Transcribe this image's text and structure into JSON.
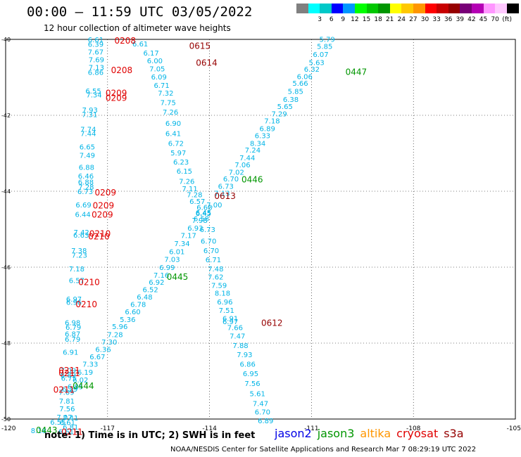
{
  "header": {
    "title": "00:00 – 11:59 UTC 03/05/2022",
    "subtitle": "12 hour collection of altimeter wave heights"
  },
  "legend": {
    "unit": "(ft)",
    "colors": [
      "#808080",
      "#00ffff",
      "#00c8c8",
      "#0000ff",
      "#0096ff",
      "#00ff00",
      "#00c800",
      "#009600",
      "#ffff00",
      "#ffc800",
      "#ff9600",
      "#ff0000",
      "#c80000",
      "#960000",
      "#780078",
      "#b400b4",
      "#ff96ff",
      "#ffc8ff",
      "#000000"
    ],
    "labels": [
      "3",
      "6",
      "9",
      "12",
      "15",
      "18",
      "21",
      "24",
      "27",
      "30",
      "33",
      "36",
      "39",
      "42",
      "45",
      "70"
    ]
  },
  "map": {
    "lon_labels": [
      "-120",
      "-117",
      "-114",
      "-111",
      "-108",
      "-105"
    ],
    "lat_labels": [
      "-40",
      "-42",
      "-44",
      "-46",
      "-48",
      "-50"
    ],
    "track_color": "#00b4e6",
    "readings": [
      {
        "t": "6.61",
        "lon": -117.58,
        "lat": -40.0
      },
      {
        "t": "6.39",
        "lon": -117.58,
        "lat": -40.12
      },
      {
        "t": "7.67",
        "lon": -117.58,
        "lat": -40.32
      },
      {
        "t": "7.69",
        "lon": -117.56,
        "lat": -40.53
      },
      {
        "t": "7.13",
        "lon": -117.56,
        "lat": -40.73
      },
      {
        "t": "6.86",
        "lon": -117.58,
        "lat": -40.86
      },
      {
        "t": "6.55",
        "lon": -117.65,
        "lat": -41.35
      },
      {
        "t": "7.34",
        "lon": -117.63,
        "lat": -41.45
      },
      {
        "t": "7.93",
        "lon": -117.75,
        "lat": -41.85
      },
      {
        "t": "7.31",
        "lon": -117.76,
        "lat": -41.97
      },
      {
        "t": "7.74",
        "lon": -117.8,
        "lat": -42.36
      },
      {
        "t": "7.44",
        "lon": -117.8,
        "lat": -42.47
      },
      {
        "t": "6.65",
        "lon": -117.83,
        "lat": -42.82
      },
      {
        "t": "7.49",
        "lon": -117.83,
        "lat": -43.05
      },
      {
        "t": "6.88",
        "lon": -117.85,
        "lat": -43.36
      },
      {
        "t": "6.46",
        "lon": -117.87,
        "lat": -43.59
      },
      {
        "t": "6.88",
        "lon": -117.87,
        "lat": -43.75
      },
      {
        "t": "7.28",
        "lon": -117.86,
        "lat": -43.88
      },
      {
        "t": "6.73",
        "lon": -117.89,
        "lat": -44.0
      },
      {
        "t": "6.69",
        "lon": -117.94,
        "lat": -44.35
      },
      {
        "t": "6.44",
        "lon": -117.96,
        "lat": -44.6
      },
      {
        "t": "7.42",
        "lon": -118.0,
        "lat": -45.07
      },
      {
        "t": "6.63",
        "lon": -118.01,
        "lat": -45.15
      },
      {
        "t": "7.38",
        "lon": -118.07,
        "lat": -45.56
      },
      {
        "t": "7.23",
        "lon": -118.06,
        "lat": -45.68
      },
      {
        "t": "7.18",
        "lon": -118.14,
        "lat": -46.04
      },
      {
        "t": "6.57",
        "lon": -118.14,
        "lat": -46.34
      },
      {
        "t": "6.97",
        "lon": -118.22,
        "lat": -46.83
      },
      {
        "t": "6.96",
        "lon": -118.22,
        "lat": -46.92
      },
      {
        "t": "6.98",
        "lon": -118.26,
        "lat": -47.45
      },
      {
        "t": "6.79",
        "lon": -118.24,
        "lat": -47.57
      },
      {
        "t": "6.87",
        "lon": -118.26,
        "lat": -47.75
      },
      {
        "t": "6.79",
        "lon": -118.26,
        "lat": -47.89
      },
      {
        "t": "6.91",
        "lon": -118.32,
        "lat": -48.23
      },
      {
        "t": "7.09",
        "lon": -118.39,
        "lat": -48.71
      },
      {
        "t": "6.89",
        "lon": -118.39,
        "lat": -48.83
      },
      {
        "t": "6.75",
        "lon": -118.37,
        "lat": -48.92
      },
      {
        "t": "6.29",
        "lon": -118.34,
        "lat": -49.2
      },
      {
        "t": "7.09",
        "lon": -118.44,
        "lat": -49.29
      },
      {
        "t": "7.81",
        "lon": -118.43,
        "lat": -49.52
      },
      {
        "t": "7.56",
        "lon": -118.42,
        "lat": -49.72
      },
      {
        "t": "7.07",
        "lon": -118.5,
        "lat": -49.94
      },
      {
        "t": "6.55",
        "lon": -118.69,
        "lat": -50.07
      },
      {
        "t": "8.18",
        "lon": -119.26,
        "lat": -50.3
      },
      {
        "t": "6.61",
        "lon": -118.41,
        "lat": -50.08
      },
      {
        "t": "7.41",
        "lon": -118.32,
        "lat": -49.96
      },
      {
        "t": "6.81",
        "lon": -118.32,
        "lat": -50.2
      },
      {
        "t": "6.61",
        "lon": -118.45,
        "lat": -50.32
      },
      {
        "t": "6.61",
        "lon": -116.27,
        "lat": -40.11
      },
      {
        "t": "6.17",
        "lon": -115.95,
        "lat": -40.35
      },
      {
        "t": "6.00",
        "lon": -115.84,
        "lat": -40.56
      },
      {
        "t": "7.05",
        "lon": -115.77,
        "lat": -40.77
      },
      {
        "t": "6.09",
        "lon": -115.72,
        "lat": -40.98
      },
      {
        "t": "6.71",
        "lon": -115.64,
        "lat": -41.2
      },
      {
        "t": "7.32",
        "lon": -115.52,
        "lat": -41.41
      },
      {
        "t": "7.75",
        "lon": -115.45,
        "lat": -41.66
      },
      {
        "t": "7.26",
        "lon": -115.38,
        "lat": -41.91
      },
      {
        "t": "6.90",
        "lon": -115.3,
        "lat": -42.2
      },
      {
        "t": "6.41",
        "lon": -115.3,
        "lat": -42.47
      },
      {
        "t": "6.72",
        "lon": -115.22,
        "lat": -42.73
      },
      {
        "t": "5.97",
        "lon": -115.15,
        "lat": -42.98
      },
      {
        "t": "6.23",
        "lon": -115.07,
        "lat": -43.22
      },
      {
        "t": "6.15",
        "lon": -114.97,
        "lat": -43.46
      },
      {
        "t": "7.26",
        "lon": -114.9,
        "lat": -43.73
      },
      {
        "t": "7.11",
        "lon": -114.81,
        "lat": -43.93
      },
      {
        "t": "7.28",
        "lon": -114.67,
        "lat": -44.08
      },
      {
        "t": "6.57",
        "lon": -114.59,
        "lat": -44.26
      },
      {
        "t": "6.68",
        "lon": -114.38,
        "lat": -44.42
      },
      {
        "t": "6.45",
        "lon": -114.41,
        "lat": -44.57
      },
      {
        "t": "6.58",
        "lon": -114.47,
        "lat": -44.71
      },
      {
        "t": "6.73",
        "lon": -114.29,
        "lat": -45.0
      },
      {
        "t": "6.70",
        "lon": -114.26,
        "lat": -45.31
      },
      {
        "t": "6.70",
        "lon": -114.18,
        "lat": -45.56
      },
      {
        "t": "6.71",
        "lon": -114.12,
        "lat": -45.8
      },
      {
        "t": "7.48",
        "lon": -114.05,
        "lat": -46.04
      },
      {
        "t": "7.62",
        "lon": -114.05,
        "lat": -46.25
      },
      {
        "t": "7.59",
        "lon": -113.95,
        "lat": -46.47
      },
      {
        "t": "8.18",
        "lon": -113.85,
        "lat": -46.68
      },
      {
        "t": "6.96",
        "lon": -113.78,
        "lat": -46.91
      },
      {
        "t": "7.51",
        "lon": -113.73,
        "lat": -47.13
      },
      {
        "t": "6.91",
        "lon": -113.62,
        "lat": -47.34
      },
      {
        "t": "6.97",
        "lon": -113.62,
        "lat": -47.43
      },
      {
        "t": "7.66",
        "lon": -113.48,
        "lat": -47.58
      },
      {
        "t": "7.47",
        "lon": -113.41,
        "lat": -47.81
      },
      {
        "t": "7.88",
        "lon": -113.32,
        "lat": -48.06
      },
      {
        "t": "7.93",
        "lon": -113.2,
        "lat": -48.3
      },
      {
        "t": "6.86",
        "lon": -113.11,
        "lat": -48.55
      },
      {
        "t": "6.95",
        "lon": -113.02,
        "lat": -48.8
      },
      {
        "t": "7.56",
        "lon": -112.97,
        "lat": -49.06
      },
      {
        "t": "5.61",
        "lon": -112.82,
        "lat": -49.32
      },
      {
        "t": "7.47",
        "lon": -112.73,
        "lat": -49.58
      },
      {
        "t": "6.70",
        "lon": -112.67,
        "lat": -49.81
      },
      {
        "t": "6.89",
        "lon": -112.58,
        "lat": -50.04
      },
      {
        "t": "5.79",
        "lon": -110.77,
        "lat": -39.99
      },
      {
        "t": "5.85",
        "lon": -110.84,
        "lat": -40.18
      },
      {
        "t": "6.07",
        "lon": -110.96,
        "lat": -40.39
      },
      {
        "t": "5.63",
        "lon": -111.08,
        "lat": -40.6
      },
      {
        "t": "6.32",
        "lon": -111.22,
        "lat": -40.78
      },
      {
        "t": "6.06",
        "lon": -111.43,
        "lat": -40.97
      },
      {
        "t": "5.66",
        "lon": -111.56,
        "lat": -41.15
      },
      {
        "t": "5.85",
        "lon": -111.7,
        "lat": -41.36
      },
      {
        "t": "6.38",
        "lon": -111.84,
        "lat": -41.57
      },
      {
        "t": "5.65",
        "lon": -112.01,
        "lat": -41.76
      },
      {
        "t": "7.29",
        "lon": -112.18,
        "lat": -41.95
      },
      {
        "t": "7.18",
        "lon": -112.39,
        "lat": -42.14
      },
      {
        "t": "6.89",
        "lon": -112.53,
        "lat": -42.34
      },
      {
        "t": "6.33",
        "lon": -112.67,
        "lat": -42.53
      },
      {
        "t": "8.34",
        "lon": -112.81,
        "lat": -42.73
      },
      {
        "t": "7.24",
        "lon": -112.96,
        "lat": -42.91
      },
      {
        "t": "7.44",
        "lon": -113.12,
        "lat": -43.11
      },
      {
        "t": "7.06",
        "lon": -113.26,
        "lat": -43.3
      },
      {
        "t": "7.02",
        "lon": -113.44,
        "lat": -43.49
      },
      {
        "t": "6.70",
        "lon": -113.6,
        "lat": -43.67
      },
      {
        "t": "6.73",
        "lon": -113.75,
        "lat": -43.86
      },
      {
        "t": "7.13",
        "lon": -113.86,
        "lat": -44.05
      },
      {
        "t": "7.00",
        "lon": -114.09,
        "lat": -44.35
      },
      {
        "t": "6.45",
        "lon": -114.41,
        "lat": -44.56
      },
      {
        "t": "7.98",
        "lon": -114.52,
        "lat": -44.76
      },
      {
        "t": "6.93",
        "lon": -114.65,
        "lat": -44.96
      },
      {
        "t": "7.17",
        "lon": -114.85,
        "lat": -45.16
      },
      {
        "t": "7.34",
        "lon": -115.04,
        "lat": -45.37
      },
      {
        "t": "6.01",
        "lon": -115.19,
        "lat": -45.58
      },
      {
        "t": "7.03",
        "lon": -115.33,
        "lat": -45.79
      },
      {
        "t": "6.99",
        "lon": -115.48,
        "lat": -46.0
      },
      {
        "t": "7.16",
        "lon": -115.65,
        "lat": -46.2
      },
      {
        "t": "6.92",
        "lon": -115.79,
        "lat": -46.39
      },
      {
        "t": "6.52",
        "lon": -115.97,
        "lat": -46.58
      },
      {
        "t": "6.48",
        "lon": -116.14,
        "lat": -46.78
      },
      {
        "t": "6.78",
        "lon": -116.33,
        "lat": -46.97
      },
      {
        "t": "6.60",
        "lon": -116.49,
        "lat": -47.17
      },
      {
        "t": "5.36",
        "lon": -116.64,
        "lat": -47.37
      },
      {
        "t": "5.96",
        "lon": -116.87,
        "lat": -47.56
      },
      {
        "t": "7.28",
        "lon": -117.01,
        "lat": -47.77
      },
      {
        "t": "7.30",
        "lon": -117.18,
        "lat": -47.96
      },
      {
        "t": "6.36",
        "lon": -117.36,
        "lat": -48.16
      },
      {
        "t": "6.67",
        "lon": -117.53,
        "lat": -48.35
      },
      {
        "t": "7.33",
        "lon": -117.74,
        "lat": -48.55
      },
      {
        "t": "6.19",
        "lon": -117.89,
        "lat": -48.76
      },
      {
        "t": "6.02",
        "lon": -118.03,
        "lat": -48.96
      },
      {
        "t": "6.85",
        "lon": -118.18,
        "lat": -49.14
      }
    ],
    "pass_labels": [
      {
        "t": "0208",
        "lon": -116.8,
        "lat": -40.02,
        "c": "#e00000"
      },
      {
        "t": "0615",
        "lon": -114.6,
        "lat": -40.16,
        "c": "#960000"
      },
      {
        "t": "0614",
        "lon": -114.4,
        "lat": -40.6,
        "c": "#960000"
      },
      {
        "t": "0208",
        "lon": -116.9,
        "lat": -40.8,
        "c": "#e00000"
      },
      {
        "t": "0447",
        "lon": -110.0,
        "lat": -40.84,
        "c": "#009600"
      },
      {
        "t": "0209",
        "lon": -117.06,
        "lat": -41.4,
        "c": "#e00000"
      },
      {
        "t": "0209",
        "lon": -117.06,
        "lat": -41.53,
        "c": "#e00000"
      },
      {
        "t": "0446",
        "lon": -113.06,
        "lat": -43.68,
        "c": "#009600"
      },
      {
        "t": "0209",
        "lon": -117.38,
        "lat": -44.02,
        "c": "#e00000"
      },
      {
        "t": "0613",
        "lon": -113.86,
        "lat": -44.11,
        "c": "#960000"
      },
      {
        "t": "0209",
        "lon": -117.44,
        "lat": -44.36,
        "c": "#e00000"
      },
      {
        "t": "0209",
        "lon": -117.47,
        "lat": -44.6,
        "c": "#e00000"
      },
      {
        "t": "0210",
        "lon": -117.54,
        "lat": -45.1,
        "c": "#e00000"
      },
      {
        "t": "0210",
        "lon": -117.57,
        "lat": -45.18,
        "c": "#e00000"
      },
      {
        "t": "0445",
        "lon": -115.26,
        "lat": -46.24,
        "c": "#009600"
      },
      {
        "t": "0210",
        "lon": -117.86,
        "lat": -46.38,
        "c": "#e00000"
      },
      {
        "t": "0210",
        "lon": -117.94,
        "lat": -46.96,
        "c": "#e00000"
      },
      {
        "t": "0612",
        "lon": -112.48,
        "lat": -47.45,
        "c": "#960000"
      },
      {
        "t": "0211",
        "lon": -118.44,
        "lat": -48.7,
        "c": "#e00000"
      },
      {
        "t": "0211",
        "lon": -118.44,
        "lat": -48.78,
        "c": "#e00000"
      },
      {
        "t": "0444",
        "lon": -118.03,
        "lat": -49.11,
        "c": "#009600"
      },
      {
        "t": "0211",
        "lon": -118.6,
        "lat": -49.21,
        "c": "#e00000"
      },
      {
        "t": "0443",
        "lon": -119.11,
        "lat": -50.28,
        "c": "#009600"
      },
      {
        "t": "0211",
        "lon": -118.36,
        "lat": -50.32,
        "c": "#e00000"
      }
    ]
  },
  "footer": {
    "note": "note:  1) Time is in UTC;  2) SWH is in feet",
    "satellites": [
      {
        "name": "jason2",
        "color": "#0000e6"
      },
      {
        "name": "jason3",
        "color": "#009600"
      },
      {
        "name": "altika",
        "color": "#ff9600"
      },
      {
        "name": "cryosat",
        "color": "#e00000"
      },
      {
        "name": "s3a",
        "color": "#960000"
      }
    ],
    "credit": "NOAA/NESDIS Center for Satellite Applications and Research    Mar  7 08:29:19 UTC 2022"
  }
}
